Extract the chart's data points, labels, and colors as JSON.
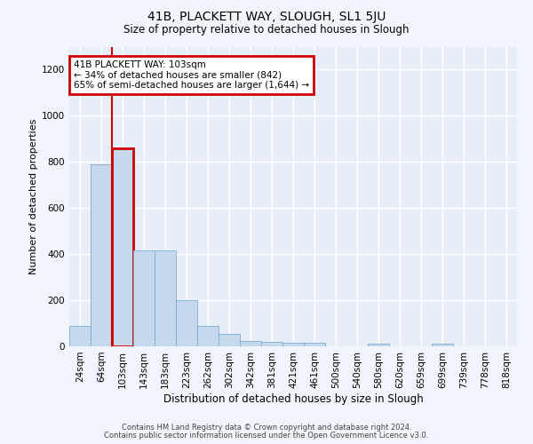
{
  "title": "41B, PLACKETT WAY, SLOUGH, SL1 5JU",
  "subtitle": "Size of property relative to detached houses in Slough",
  "xlabel": "Distribution of detached houses by size in Slough",
  "ylabel": "Number of detached properties",
  "categories": [
    "24sqm",
    "64sqm",
    "103sqm",
    "143sqm",
    "183sqm",
    "223sqm",
    "262sqm",
    "302sqm",
    "342sqm",
    "381sqm",
    "421sqm",
    "461sqm",
    "500sqm",
    "540sqm",
    "580sqm",
    "620sqm",
    "659sqm",
    "699sqm",
    "739sqm",
    "778sqm",
    "818sqm"
  ],
  "values": [
    90,
    790,
    860,
    415,
    415,
    200,
    90,
    55,
    25,
    18,
    15,
    15,
    0,
    0,
    12,
    0,
    0,
    12,
    0,
    0,
    0
  ],
  "bar_color": "#c5d8ec",
  "bar_edge_color": "#7aadd4",
  "highlight_bar_index": 2,
  "highlight_color": "#cc0000",
  "annotation_text": "41B PLACKETT WAY: 103sqm\n← 34% of detached houses are smaller (842)\n65% of semi-detached houses are larger (1,644) →",
  "annotation_box_color": "#cc0000",
  "ylim": [
    0,
    1300
  ],
  "yticks": [
    0,
    200,
    400,
    600,
    800,
    1000,
    1200
  ],
  "footer_line1": "Contains HM Land Registry data © Crown copyright and database right 2024.",
  "footer_line2": "Contains public sector information licensed under the Open Government Licence v3.0.",
  "bg_color": "#f2f5fb",
  "plot_bg_color": "#e8eef8",
  "grid_color": "#ffffff",
  "title_fontsize": 10,
  "subtitle_fontsize": 8.5,
  "ylabel_fontsize": 8,
  "xlabel_fontsize": 8.5,
  "tick_fontsize": 7.5,
  "annot_fontsize": 7.5,
  "footer_fontsize": 6.0
}
